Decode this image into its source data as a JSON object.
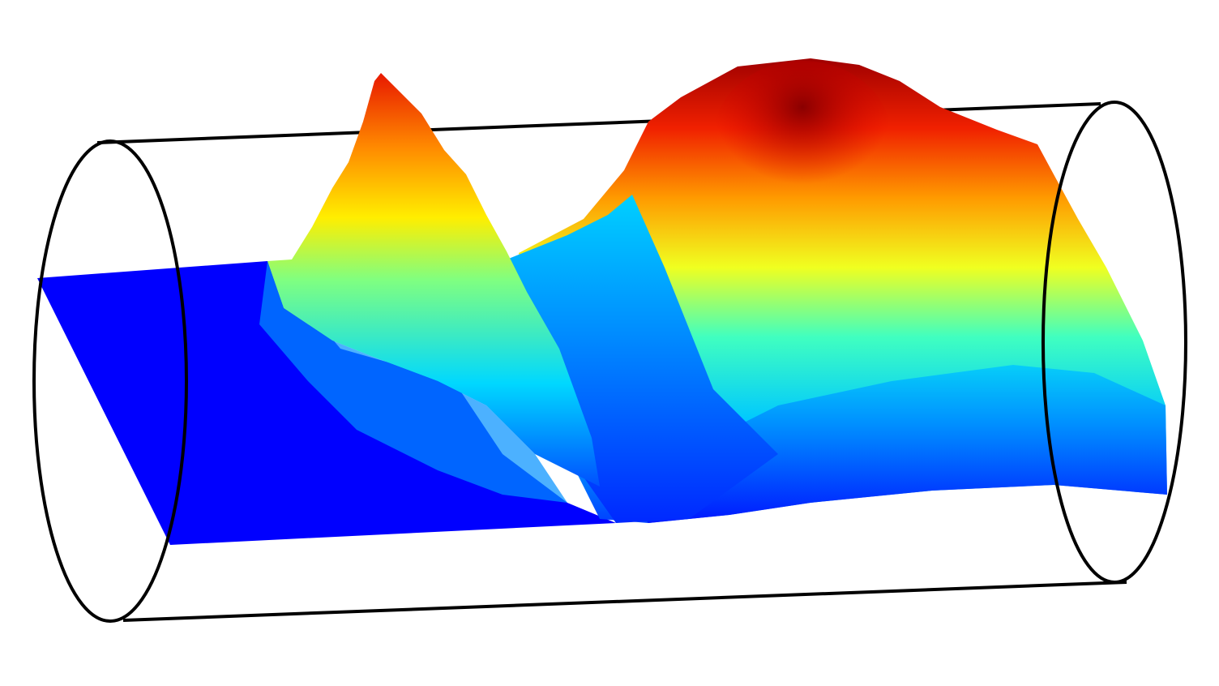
{
  "figure": {
    "kind": "3d-surface-in-cylinder",
    "colormap": "jet",
    "colormap_stops": [
      "#00008f",
      "#0000ff",
      "#00ffff",
      "#ffff00",
      "#ff8000",
      "#ff0000",
      "#800000"
    ],
    "cylinder_color": "#000000",
    "background": "#ffffff",
    "peaks": [
      {
        "id": "left-peak",
        "relative_height": 0.93,
        "shape": "sharp"
      },
      {
        "id": "right-peak",
        "relative_height": 1.0,
        "shape": "broad"
      }
    ]
  }
}
